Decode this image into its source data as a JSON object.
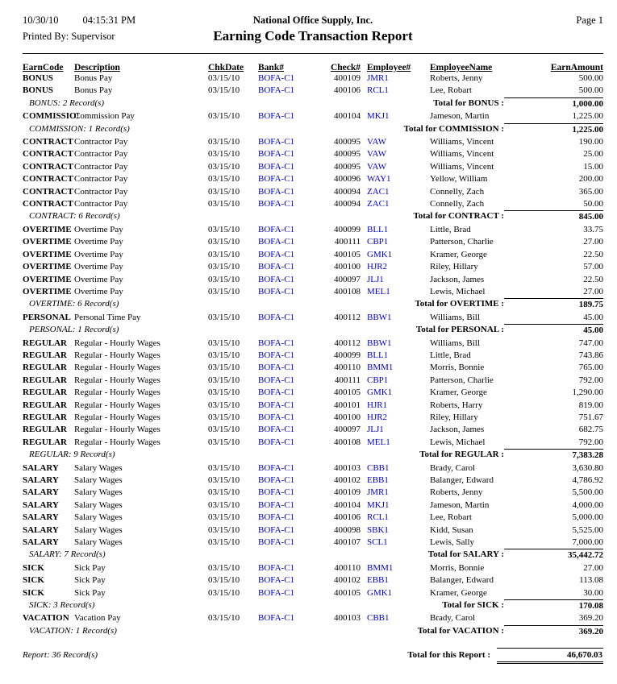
{
  "page": {
    "date": "10/30/10",
    "time": "04:15:31 PM",
    "company": "National Office Supply, Inc.",
    "page_label": "Page 1",
    "printed_by": "Printed By: Supervisor",
    "title": "Earning Code Transaction Report"
  },
  "colors": {
    "link_blue": "#0000cc"
  },
  "columns": {
    "earn_code": "EarnCode",
    "description": "Description",
    "chk_date": "ChkDate",
    "bank": "Bank#",
    "check": "Check#",
    "employee_no": "Employee#",
    "employee_name": "EmployeeName",
    "earn_amount": "EarnAmount"
  },
  "report": {
    "groups": [
      {
        "rows": [
          {
            "earn_code": "BONUS",
            "description": "Bonus Pay",
            "chk_date": "03/15/10",
            "bank": "BOFA-C1",
            "check": "400109",
            "employee_no": "JMR1",
            "employee_name": "Roberts, Jenny",
            "amount": "500.00"
          },
          {
            "earn_code": "BONUS",
            "description": "Bonus Pay",
            "chk_date": "03/15/10",
            "bank": "BOFA-C1",
            "check": "400106",
            "employee_no": "RCL1",
            "employee_name": "Lee, Robart",
            "amount": "500.00"
          }
        ],
        "summary": {
          "count_label": "BONUS: 2 Record(s)",
          "total_label": "Total for BONUS :",
          "total": "1,000.00"
        }
      },
      {
        "rows": [
          {
            "earn_code": "COMMISSIO!",
            "description": "Commission Pay",
            "chk_date": "03/15/10",
            "bank": "BOFA-C1",
            "check": "400104",
            "employee_no": "MKJ1",
            "employee_name": "Jameson, Martin",
            "amount": "1,225.00"
          }
        ],
        "summary": {
          "count_label": "COMMISSION: 1 Record(s)",
          "total_label": "Total for COMMISSION :",
          "total": "1,225.00"
        }
      },
      {
        "rows": [
          {
            "earn_code": "CONTRACT",
            "description": "Contractor Pay",
            "chk_date": "03/15/10",
            "bank": "BOFA-C1",
            "check": "400095",
            "employee_no": "VAW",
            "employee_name": "Williams, Vincent",
            "amount": "190.00"
          },
          {
            "earn_code": "CONTRACT",
            "description": "Contractor Pay",
            "chk_date": "03/15/10",
            "bank": "BOFA-C1",
            "check": "400095",
            "employee_no": "VAW",
            "employee_name": "Williams, Vincent",
            "amount": "25.00"
          },
          {
            "earn_code": "CONTRACT",
            "description": "Contractor Pay",
            "chk_date": "03/15/10",
            "bank": "BOFA-C1",
            "check": "400095",
            "employee_no": "VAW",
            "employee_name": "Williams, Vincent",
            "amount": "15.00"
          },
          {
            "earn_code": "CONTRACT",
            "description": "Contractor Pay",
            "chk_date": "03/15/10",
            "bank": "BOFA-C1",
            "check": "400096",
            "employee_no": "WAY1",
            "employee_name": "Yellow, William",
            "amount": "200.00"
          },
          {
            "earn_code": "CONTRACT",
            "description": "Contractor Pay",
            "chk_date": "03/15/10",
            "bank": "BOFA-C1",
            "check": "400094",
            "employee_no": "ZAC1",
            "employee_name": "Connelly, Zach",
            "amount": "365.00"
          },
          {
            "earn_code": "CONTRACT",
            "description": "Contractor Pay",
            "chk_date": "03/15/10",
            "bank": "BOFA-C1",
            "check": "400094",
            "employee_no": "ZAC1",
            "employee_name": "Connelly, Zach",
            "amount": "50.00"
          }
        ],
        "summary": {
          "count_label": "CONTRACT: 6 Record(s)",
          "total_label": "Total for CONTRACT :",
          "total": "845.00"
        }
      },
      {
        "rows": [
          {
            "earn_code": "OVERTIME",
            "description": "Overtime Pay",
            "chk_date": "03/15/10",
            "bank": "BOFA-C1",
            "check": "400099",
            "employee_no": "BLL1",
            "employee_name": "Little, Brad",
            "amount": "33.75"
          },
          {
            "earn_code": "OVERTIME",
            "description": "Overtime Pay",
            "chk_date": "03/15/10",
            "bank": "BOFA-C1",
            "check": "400111",
            "employee_no": "CBP1",
            "employee_name": "Patterson, Charlie",
            "amount": "27.00"
          },
          {
            "earn_code": "OVERTIME",
            "description": "Overtime Pay",
            "chk_date": "03/15/10",
            "bank": "BOFA-C1",
            "check": "400105",
            "employee_no": "GMK1",
            "employee_name": "Kramer, George",
            "amount": "22.50"
          },
          {
            "earn_code": "OVERTIME",
            "description": "Overtime Pay",
            "chk_date": "03/15/10",
            "bank": "BOFA-C1",
            "check": "400100",
            "employee_no": "HJR2",
            "employee_name": "Riley, Hillary",
            "amount": "57.00"
          },
          {
            "earn_code": "OVERTIME",
            "description": "Overtime Pay",
            "chk_date": "03/15/10",
            "bank": "BOFA-C1",
            "check": "400097",
            "employee_no": "JLJ1",
            "employee_name": "Jackson, James",
            "amount": "22.50"
          },
          {
            "earn_code": "OVERTIME",
            "description": "Overtime Pay",
            "chk_date": "03/15/10",
            "bank": "BOFA-C1",
            "check": "400108",
            "employee_no": "MEL1",
            "employee_name": "Lewis, Michael",
            "amount": "27.00"
          }
        ],
        "summary": {
          "count_label": "OVERTIME: 6 Record(s)",
          "total_label": "Total for OVERTIME :",
          "total": "189.75"
        }
      },
      {
        "rows": [
          {
            "earn_code": "PERSONAL",
            "description": "Personal Time Pay",
            "chk_date": "03/15/10",
            "bank": "BOFA-C1",
            "check": "400112",
            "employee_no": "BBW1",
            "employee_name": "Williams, Bill",
            "amount": "45.00"
          }
        ],
        "summary": {
          "count_label": "PERSONAL: 1 Record(s)",
          "total_label": "Total for PERSONAL :",
          "total": "45.00"
        }
      },
      {
        "rows": [
          {
            "earn_code": "REGULAR",
            "description": "Regular - Hourly Wages",
            "chk_date": "03/15/10",
            "bank": "BOFA-C1",
            "check": "400112",
            "employee_no": "BBW1",
            "employee_name": "Williams, Bill",
            "amount": "747.00"
          },
          {
            "earn_code": "REGULAR",
            "description": "Regular - Hourly Wages",
            "chk_date": "03/15/10",
            "bank": "BOFA-C1",
            "check": "400099",
            "employee_no": "BLL1",
            "employee_name": "Little, Brad",
            "amount": "743.86"
          },
          {
            "earn_code": "REGULAR",
            "description": "Regular - Hourly Wages",
            "chk_date": "03/15/10",
            "bank": "BOFA-C1",
            "check": "400110",
            "employee_no": "BMM1",
            "employee_name": "Morris, Bonnie",
            "amount": "765.00"
          },
          {
            "earn_code": "REGULAR",
            "description": "Regular - Hourly Wages",
            "chk_date": "03/15/10",
            "bank": "BOFA-C1",
            "check": "400111",
            "employee_no": "CBP1",
            "employee_name": "Patterson, Charlie",
            "amount": "792.00"
          },
          {
            "earn_code": "REGULAR",
            "description": "Regular - Hourly Wages",
            "chk_date": "03/15/10",
            "bank": "BOFA-C1",
            "check": "400105",
            "employee_no": "GMK1",
            "employee_name": "Kramer, George",
            "amount": "1,290.00"
          },
          {
            "earn_code": "REGULAR",
            "description": "Regular - Hourly Wages",
            "chk_date": "03/15/10",
            "bank": "BOFA-C1",
            "check": "400101",
            "employee_no": "HJR1",
            "employee_name": "Roberts, Harry",
            "amount": "819.00"
          },
          {
            "earn_code": "REGULAR",
            "description": "Regular - Hourly Wages",
            "chk_date": "03/15/10",
            "bank": "BOFA-C1",
            "check": "400100",
            "employee_no": "HJR2",
            "employee_name": "Riley, Hillary",
            "amount": "751.67"
          },
          {
            "earn_code": "REGULAR",
            "description": "Regular - Hourly Wages",
            "chk_date": "03/15/10",
            "bank": "BOFA-C1",
            "check": "400097",
            "employee_no": "JLJ1",
            "employee_name": "Jackson, James",
            "amount": "682.75"
          },
          {
            "earn_code": "REGULAR",
            "description": "Regular - Hourly Wages",
            "chk_date": "03/15/10",
            "bank": "BOFA-C1",
            "check": "400108",
            "employee_no": "MEL1",
            "employee_name": "Lewis, Michael",
            "amount": "792.00"
          }
        ],
        "summary": {
          "count_label": "REGULAR: 9 Record(s)",
          "total_label": "Total for REGULAR :",
          "total": "7,383.28"
        }
      },
      {
        "rows": [
          {
            "earn_code": "SALARY",
            "description": "Salary Wages",
            "chk_date": "03/15/10",
            "bank": "BOFA-C1",
            "check": "400103",
            "employee_no": "CBB1",
            "employee_name": "Brady, Carol",
            "amount": "3,630.80"
          },
          {
            "earn_code": "SALARY",
            "description": "Salary Wages",
            "chk_date": "03/15/10",
            "bank": "BOFA-C1",
            "check": "400102",
            "employee_no": "EBB1",
            "employee_name": "Balanger, Edward",
            "amount": "4,786.92"
          },
          {
            "earn_code": "SALARY",
            "description": "Salary Wages",
            "chk_date": "03/15/10",
            "bank": "BOFA-C1",
            "check": "400109",
            "employee_no": "JMR1",
            "employee_name": "Roberts, Jenny",
            "amount": "5,500.00"
          },
          {
            "earn_code": "SALARY",
            "description": "Salary Wages",
            "chk_date": "03/15/10",
            "bank": "BOFA-C1",
            "check": "400104",
            "employee_no": "MKJ1",
            "employee_name": "Jameson, Martin",
            "amount": "4,000.00"
          },
          {
            "earn_code": "SALARY",
            "description": "Salary Wages",
            "chk_date": "03/15/10",
            "bank": "BOFA-C1",
            "check": "400106",
            "employee_no": "RCL1",
            "employee_name": "Lee, Robart",
            "amount": "5,000.00"
          },
          {
            "earn_code": "SALARY",
            "description": "Salary Wages",
            "chk_date": "03/15/10",
            "bank": "BOFA-C1",
            "check": "400098",
            "employee_no": "SBK1",
            "employee_name": "Kidd, Susan",
            "amount": "5,525.00"
          },
          {
            "earn_code": "SALARY",
            "description": "Salary Wages",
            "chk_date": "03/15/10",
            "bank": "BOFA-C1",
            "check": "400107",
            "employee_no": "SCL1",
            "employee_name": "Lewis, Sally",
            "amount": "7,000.00"
          }
        ],
        "summary": {
          "count_label": "SALARY: 7 Record(s)",
          "total_label": "Total for SALARY :",
          "total": "35,442.72"
        }
      },
      {
        "rows": [
          {
            "earn_code": "SICK",
            "description": "Sick Pay",
            "chk_date": "03/15/10",
            "bank": "BOFA-C1",
            "check": "400110",
            "employee_no": "BMM1",
            "employee_name": "Morris, Bonnie",
            "amount": "27.00"
          },
          {
            "earn_code": "SICK",
            "description": "Sick Pay",
            "chk_date": "03/15/10",
            "bank": "BOFA-C1",
            "check": "400102",
            "employee_no": "EBB1",
            "employee_name": "Balanger, Edward",
            "amount": "113.08"
          },
          {
            "earn_code": "SICK",
            "description": "Sick Pay",
            "chk_date": "03/15/10",
            "bank": "BOFA-C1",
            "check": "400105",
            "employee_no": "GMK1",
            "employee_name": "Kramer, George",
            "amount": "30.00"
          }
        ],
        "summary": {
          "count_label": "SICK: 3 Record(s)",
          "total_label": "Total for SICK :",
          "total": "170.08"
        }
      },
      {
        "rows": [
          {
            "earn_code": "VACATION",
            "description": "Vacation Pay",
            "chk_date": "03/15/10",
            "bank": "BOFA-C1",
            "check": "400103",
            "employee_no": "CBB1",
            "employee_name": "Brady, Carol",
            "amount": "369.20"
          }
        ],
        "summary": {
          "count_label": "VACATION: 1 Record(s)",
          "total_label": "Total for VACATION :",
          "total": "369.20"
        }
      }
    ],
    "footer": {
      "count_label": "Report: 36 Record(s)",
      "total_label": "Total for this Report :",
      "total": "46,670.03"
    }
  }
}
